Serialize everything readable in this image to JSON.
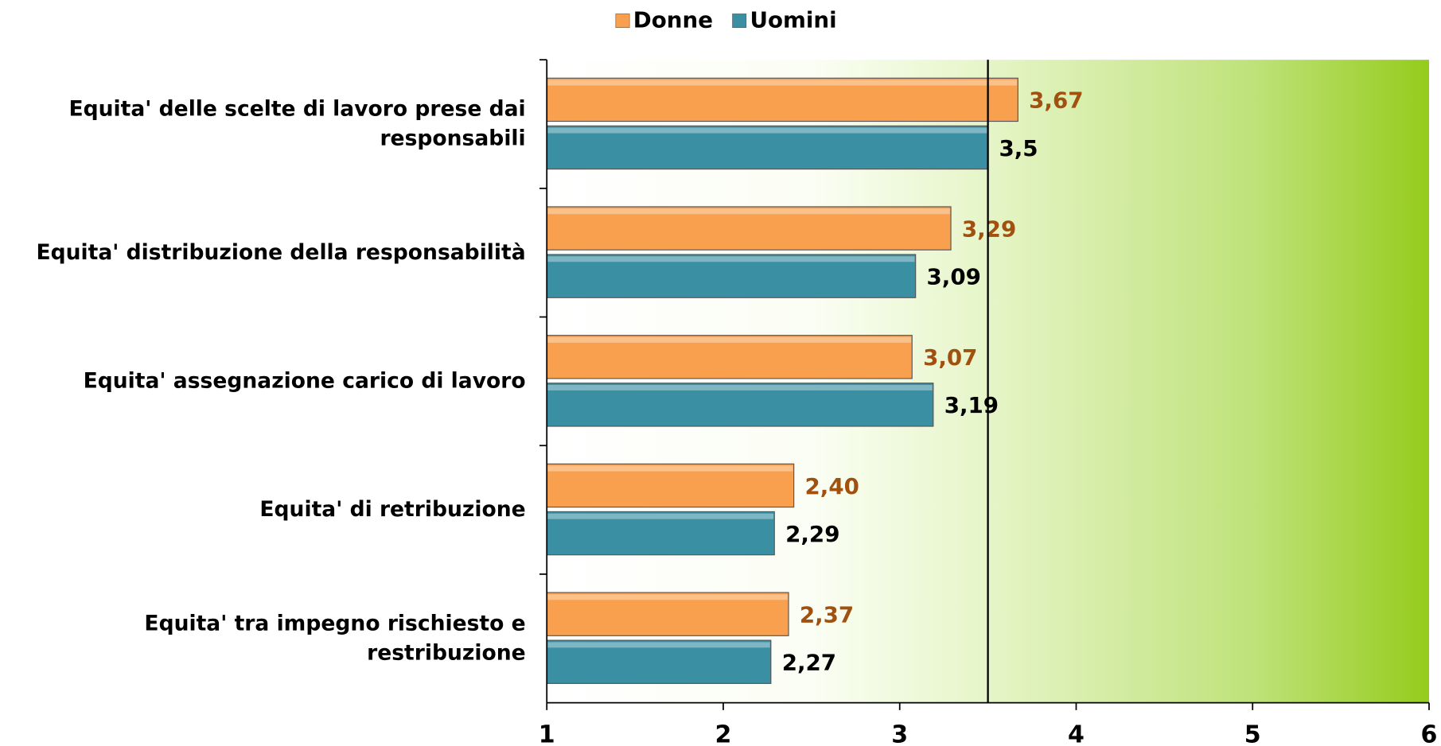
{
  "chart_data": {
    "type": "bar",
    "orientation": "horizontal",
    "categories": [
      "Equita' delle scelte di  lavoro prese dai responsabili",
      "Equita' distribuzione della responsabilità",
      "Equita' assegnazione carico di lavoro",
      "Equita' di retribuzione",
      "Equita' tra impegno rischiesto e restribuzione"
    ],
    "series": [
      {
        "name": "Donne",
        "color": "#f9a04e",
        "label_color": "#a0500f",
        "values": [
          3.67,
          3.29,
          3.07,
          2.4,
          2.37
        ],
        "value_labels": [
          "3,67",
          "3,29",
          "3,07",
          "2,40",
          "2,37"
        ]
      },
      {
        "name": "Uomini",
        "color": "#3a8fa3",
        "label_color": "#000000",
        "values": [
          3.5,
          3.09,
          3.19,
          2.29,
          2.27
        ],
        "value_labels": [
          "3,5",
          "3,09",
          "3,19",
          "2,29",
          "2,27"
        ]
      }
    ],
    "xlim": [
      1,
      6
    ],
    "xticks": [
      1,
      2,
      3,
      4,
      5,
      6
    ],
    "reference_line": 3.5,
    "legend": "top"
  }
}
